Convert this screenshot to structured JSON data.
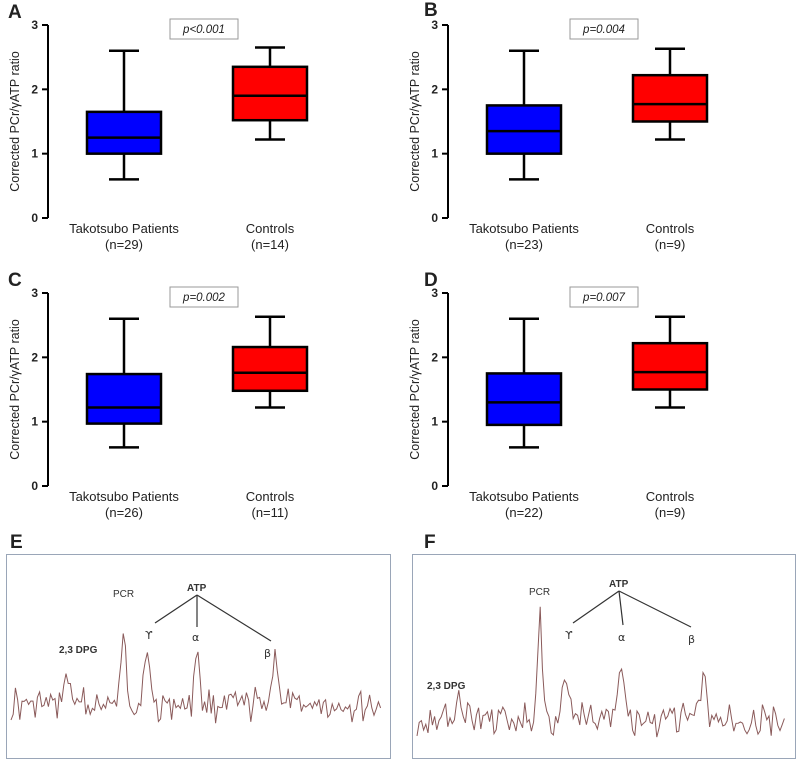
{
  "chart_data": [
    {
      "panel": "A",
      "type": "box",
      "ylabel": "Corrected PCr/γATP ratio",
      "ylim": [
        0,
        3
      ],
      "yticks": [
        0,
        1,
        2,
        3
      ],
      "pvalue": "p<0.001",
      "categories": [
        {
          "label": "Takotsubo Patients",
          "n": "(n=29)",
          "color": "#0000ff",
          "min": 0.6,
          "q1": 1.0,
          "median": 1.25,
          "q3": 1.65,
          "max": 2.6
        },
        {
          "label": "Controls",
          "n": "(n=14)",
          "color": "#ff0000",
          "min": 1.22,
          "q1": 1.52,
          "median": 1.9,
          "q3": 2.35,
          "max": 2.65
        }
      ]
    },
    {
      "panel": "B",
      "type": "box",
      "ylabel": "Corrected PCr/γATP ratio",
      "ylim": [
        0,
        3
      ],
      "yticks": [
        0,
        1,
        2,
        3
      ],
      "pvalue": "p=0.004",
      "categories": [
        {
          "label": "Takotsubo Patients",
          "n": "(n=23)",
          "color": "#0000ff",
          "min": 0.6,
          "q1": 1.0,
          "median": 1.35,
          "q3": 1.75,
          "max": 2.6
        },
        {
          "label": "Controls",
          "n": "(n=9)",
          "color": "#ff0000",
          "min": 1.22,
          "q1": 1.5,
          "median": 1.77,
          "q3": 2.22,
          "max": 2.63
        }
      ]
    },
    {
      "panel": "C",
      "type": "box",
      "ylabel": "Corrected PCr/γATP ratio",
      "ylim": [
        0,
        3
      ],
      "yticks": [
        0,
        1,
        2,
        3
      ],
      "pvalue": "p=0.002",
      "categories": [
        {
          "label": "Takotsubo Patients",
          "n": "(n=26)",
          "color": "#0000ff",
          "min": 0.6,
          "q1": 0.97,
          "median": 1.22,
          "q3": 1.74,
          "max": 2.6
        },
        {
          "label": "Controls",
          "n": "(n=11)",
          "color": "#ff0000",
          "min": 1.22,
          "q1": 1.48,
          "median": 1.76,
          "q3": 2.16,
          "max": 2.63
        }
      ]
    },
    {
      "panel": "D",
      "type": "box",
      "ylabel": "Corrected PCr/γATP ratio",
      "ylim": [
        0,
        3
      ],
      "yticks": [
        0,
        1,
        2,
        3
      ],
      "pvalue": "p=0.007",
      "categories": [
        {
          "label": "Takotsubo Patients",
          "n": "(n=22)",
          "color": "#0000ff",
          "min": 0.6,
          "q1": 0.95,
          "median": 1.3,
          "q3": 1.75,
          "max": 2.6
        },
        {
          "label": "Controls",
          "n": "(n=9)",
          "color": "#ff0000",
          "min": 1.22,
          "q1": 1.5,
          "median": 1.77,
          "q3": 2.22,
          "max": 2.63
        }
      ]
    }
  ],
  "spectra": [
    {
      "panel": "E",
      "labels": {
        "pcr": "PCR",
        "atp": "ATP",
        "gamma": "ϒ",
        "alpha": "α",
        "beta": "β",
        "dpg": "2,3 DPG"
      }
    },
    {
      "panel": "F",
      "labels": {
        "pcr": "PCR",
        "atp": "ATP",
        "gamma": "ϒ",
        "alpha": "α",
        "beta": "β",
        "dpg": "2,3 DPG"
      }
    }
  ]
}
